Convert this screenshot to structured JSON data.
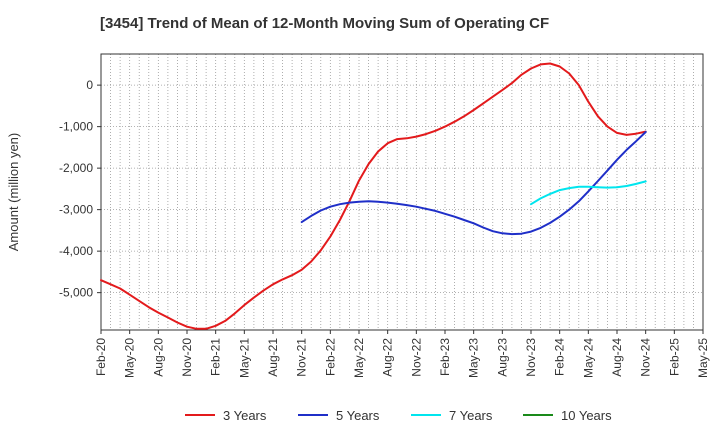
{
  "chart_data": {
    "type": "line",
    "title": "[3454]  Trend of Mean of 12-Month Moving Sum of Operating CF",
    "xlabel": "",
    "ylabel": "Amount (million yen)",
    "x_range": [
      "2020-02",
      "2025-05"
    ],
    "ylim": [
      -5900,
      750
    ],
    "y_ticks": [
      0,
      -1000,
      -2000,
      -3000,
      -4000,
      -5000
    ],
    "y_tick_labels": [
      "0",
      "-1,000",
      "-2,000",
      "-3,000",
      "-4,000",
      "-5,000"
    ],
    "x_ticks": [
      "2020-02",
      "2020-05",
      "2020-08",
      "2020-11",
      "2021-02",
      "2021-05",
      "2021-08",
      "2021-11",
      "2022-02",
      "2022-05",
      "2022-08",
      "2022-11",
      "2023-02",
      "2023-05",
      "2023-08",
      "2023-11",
      "2024-02",
      "2024-05",
      "2024-08",
      "2024-11",
      "2025-02",
      "2025-05"
    ],
    "x_tick_labels": [
      "Feb-20",
      "May-20",
      "Aug-20",
      "Nov-20",
      "Feb-21",
      "May-21",
      "Aug-21",
      "Nov-21",
      "Feb-22",
      "May-22",
      "Aug-22",
      "Nov-22",
      "Feb-23",
      "May-23",
      "Aug-23",
      "Nov-23",
      "Feb-24",
      "May-24",
      "Aug-24",
      "Nov-24",
      "Feb-25",
      "May-25"
    ],
    "grid": true,
    "legend_position": "bottom",
    "series": [
      {
        "name": "3 Years",
        "color": "#e31a1c",
        "x": [
          "2020-02",
          "2020-03",
          "2020-04",
          "2020-05",
          "2020-06",
          "2020-07",
          "2020-08",
          "2020-09",
          "2020-10",
          "2020-11",
          "2020-12",
          "2021-01",
          "2021-02",
          "2021-03",
          "2021-04",
          "2021-05",
          "2021-06",
          "2021-07",
          "2021-08",
          "2021-09",
          "2021-10",
          "2021-11",
          "2021-12",
          "2022-01",
          "2022-02",
          "2022-03",
          "2022-04",
          "2022-05",
          "2022-06",
          "2022-07",
          "2022-08",
          "2022-09",
          "2022-10",
          "2022-11",
          "2022-12",
          "2023-01",
          "2023-02",
          "2023-03",
          "2023-04",
          "2023-05",
          "2023-06",
          "2023-07",
          "2023-08",
          "2023-09",
          "2023-10",
          "2023-11",
          "2023-12",
          "2024-01",
          "2024-02",
          "2024-03",
          "2024-04",
          "2024-05",
          "2024-06",
          "2024-07",
          "2024-08",
          "2024-09",
          "2024-10",
          "2024-11"
        ],
        "values": [
          -4700,
          -4800,
          -4900,
          -5050,
          -5200,
          -5350,
          -5480,
          -5600,
          -5720,
          -5820,
          -5870,
          -5870,
          -5800,
          -5680,
          -5500,
          -5300,
          -5120,
          -4950,
          -4800,
          -4680,
          -4580,
          -4450,
          -4250,
          -3980,
          -3650,
          -3250,
          -2800,
          -2300,
          -1900,
          -1600,
          -1400,
          -1300,
          -1280,
          -1240,
          -1180,
          -1100,
          -1000,
          -880,
          -750,
          -600,
          -440,
          -280,
          -120,
          50,
          250,
          400,
          500,
          520,
          450,
          280,
          0,
          -400,
          -750,
          -1000,
          -1150,
          -1200,
          -1170,
          -1120
        ]
      },
      {
        "name": "5 Years",
        "color": "#1f2fc8",
        "x": [
          "2021-11",
          "2021-12",
          "2022-01",
          "2022-02",
          "2022-03",
          "2022-04",
          "2022-05",
          "2022-06",
          "2022-07",
          "2022-08",
          "2022-09",
          "2022-10",
          "2022-11",
          "2022-12",
          "2023-01",
          "2023-02",
          "2023-03",
          "2023-04",
          "2023-05",
          "2023-06",
          "2023-07",
          "2023-08",
          "2023-09",
          "2023-10",
          "2023-11",
          "2023-12",
          "2024-01",
          "2024-02",
          "2024-03",
          "2024-04",
          "2024-05",
          "2024-06",
          "2024-07",
          "2024-08",
          "2024-09",
          "2024-10",
          "2024-11"
        ],
        "values": [
          -3300,
          -3150,
          -3020,
          -2930,
          -2870,
          -2830,
          -2810,
          -2800,
          -2810,
          -2830,
          -2860,
          -2890,
          -2930,
          -2980,
          -3030,
          -3100,
          -3170,
          -3250,
          -3330,
          -3430,
          -3520,
          -3570,
          -3590,
          -3580,
          -3530,
          -3440,
          -3320,
          -3170,
          -3000,
          -2800,
          -2560,
          -2310,
          -2060,
          -1800,
          -1560,
          -1350,
          -1130
        ]
      },
      {
        "name": "7 Years",
        "color": "#00e5ee",
        "x": [
          "2023-11",
          "2023-12",
          "2024-01",
          "2024-02",
          "2024-03",
          "2024-04",
          "2024-05",
          "2024-06",
          "2024-07",
          "2024-08",
          "2024-09",
          "2024-10",
          "2024-11"
        ],
        "values": [
          -2870,
          -2730,
          -2620,
          -2530,
          -2480,
          -2450,
          -2450,
          -2460,
          -2470,
          -2460,
          -2430,
          -2380,
          -2320
        ]
      },
      {
        "name": "10 Years",
        "color": "#1a8a1a",
        "x": [],
        "values": []
      }
    ]
  }
}
